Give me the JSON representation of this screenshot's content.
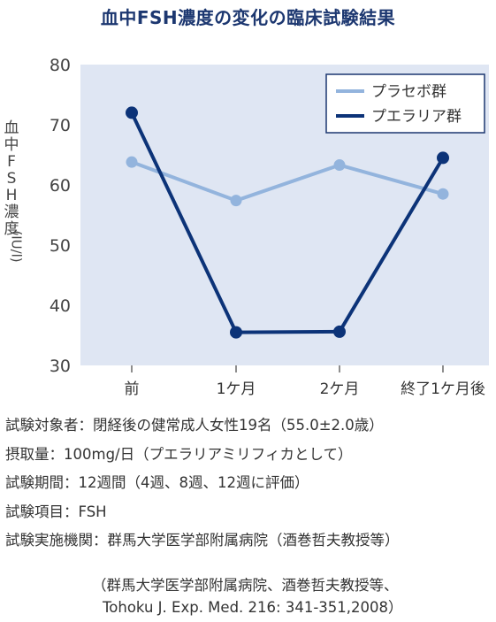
{
  "chart_data": {
    "type": "line",
    "title": "血中FSH濃度の変化の臨床試験結果",
    "ylabel": "血中FSH濃度(IU/l)",
    "xlabel": "",
    "categories": [
      "前",
      "1ケ月",
      "2ケ月",
      "終了1ケ月後"
    ],
    "ylim": [
      30,
      80
    ],
    "yticks": [
      "30",
      "40",
      "50",
      "60",
      "70",
      "80"
    ],
    "grid": false,
    "legend_position": "top-right",
    "background_color": "#dfe6f3",
    "series": [
      {
        "name": "プラセボ群",
        "values": [
          63.8,
          57.4,
          63.3,
          58.5
        ],
        "color": "#93b4dd"
      },
      {
        "name": "プエラリア群",
        "values": [
          72.0,
          35.5,
          35.6,
          64.5
        ],
        "color": "#0c3378"
      }
    ]
  },
  "notes": [
    "試験対象者：閉経後の健常成人女性19名（55.0±2.0歳）",
    "摂取量：100mg/日（プエラリアミリフィカとして）",
    "試験期間：12週間（4週、8週、12週に評価）",
    "試験項目：FSH",
    "試験実施機関：群馬大学医学部附属病院（酒巻哲夫教授等）"
  ],
  "citation": {
    "line1": "（群馬大学医学部附属病院、酒巻哲夫教授等、",
    "line2": "Tohoku J. Exp. Med. 216: 341-351,2008）"
  }
}
